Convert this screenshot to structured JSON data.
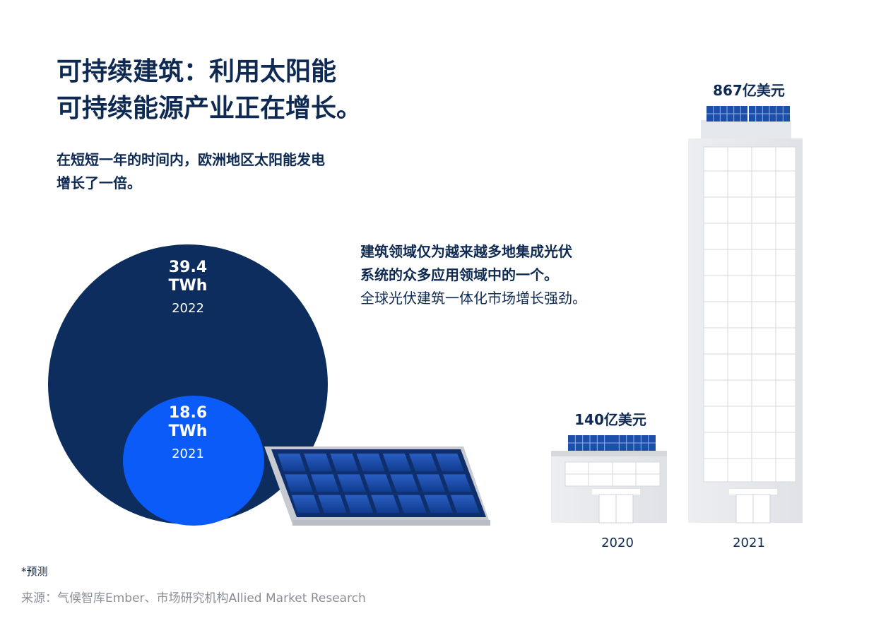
{
  "title": {
    "line1": "可持续建筑：利用太阳能",
    "line2": "可持续能源产业正在增长。"
  },
  "subtitle": {
    "line1": "在短短一年的时间内，欧洲地区太阳能发电",
    "line2": "增长了一倍。"
  },
  "middle": {
    "bold_line1": "建筑领域仅为越来越多地集成光伏",
    "bold_line2": "系统的众多应用领域中的一个。",
    "line3": "全球光伏建筑一体化市场增长强劲。"
  },
  "bubbles": [
    {
      "value": "39.4",
      "unit": "TWh",
      "year": "2022",
      "numeric": 39.4,
      "color": "#0c2d5e"
    },
    {
      "value": "18.6",
      "unit": "TWh",
      "year": "2021",
      "numeric": 18.6,
      "color": "#0a5bf7"
    }
  ],
  "buildings": [
    {
      "label": "140亿美元",
      "year": "2020",
      "numeric_billion_usd": 14
    },
    {
      "label": "867亿美元",
      "year": "2021",
      "numeric_billion_usd": 86.7
    }
  ],
  "footnote": "*预测",
  "source": "来源：气候智库Ember、市场研究机构Allied Market Research",
  "icons": [
    "solar-panel-icon",
    "building-icon"
  ]
}
